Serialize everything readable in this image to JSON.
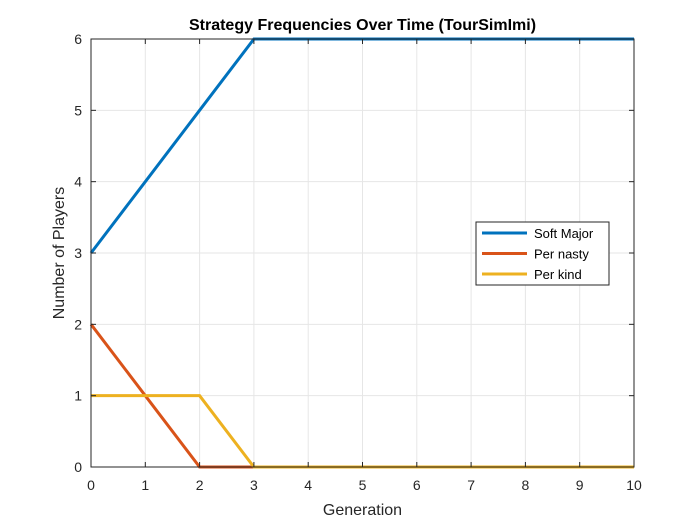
{
  "chart_data": {
    "type": "line",
    "title": "Strategy Frequencies Over Time (TourSimImi)",
    "xlabel": "Generation",
    "ylabel": "Number of Players",
    "xlim": [
      0,
      10
    ],
    "ylim": [
      0,
      6
    ],
    "xticks": [
      "0",
      "1",
      "2",
      "3",
      "4",
      "5",
      "6",
      "7",
      "8",
      "9",
      "10"
    ],
    "yticks": [
      "0",
      "1",
      "2",
      "3",
      "4",
      "5",
      "6"
    ],
    "grid": true,
    "legend_position": "right",
    "x": [
      0,
      1,
      2,
      3,
      4,
      5,
      6,
      7,
      8,
      9,
      10
    ],
    "series": [
      {
        "name": "Soft Major",
        "color": "#0072BD",
        "values": [
          3,
          4,
          5,
          6,
          6,
          6,
          6,
          6,
          6,
          6,
          6
        ]
      },
      {
        "name": "Per nasty",
        "color": "#D95319",
        "values": [
          2,
          1,
          0,
          0,
          0,
          0,
          0,
          0,
          0,
          0,
          0
        ]
      },
      {
        "name": "Per kind",
        "color": "#EDB120",
        "values": [
          1,
          1,
          1,
          0,
          0,
          0,
          0,
          0,
          0,
          0,
          0
        ]
      }
    ]
  }
}
